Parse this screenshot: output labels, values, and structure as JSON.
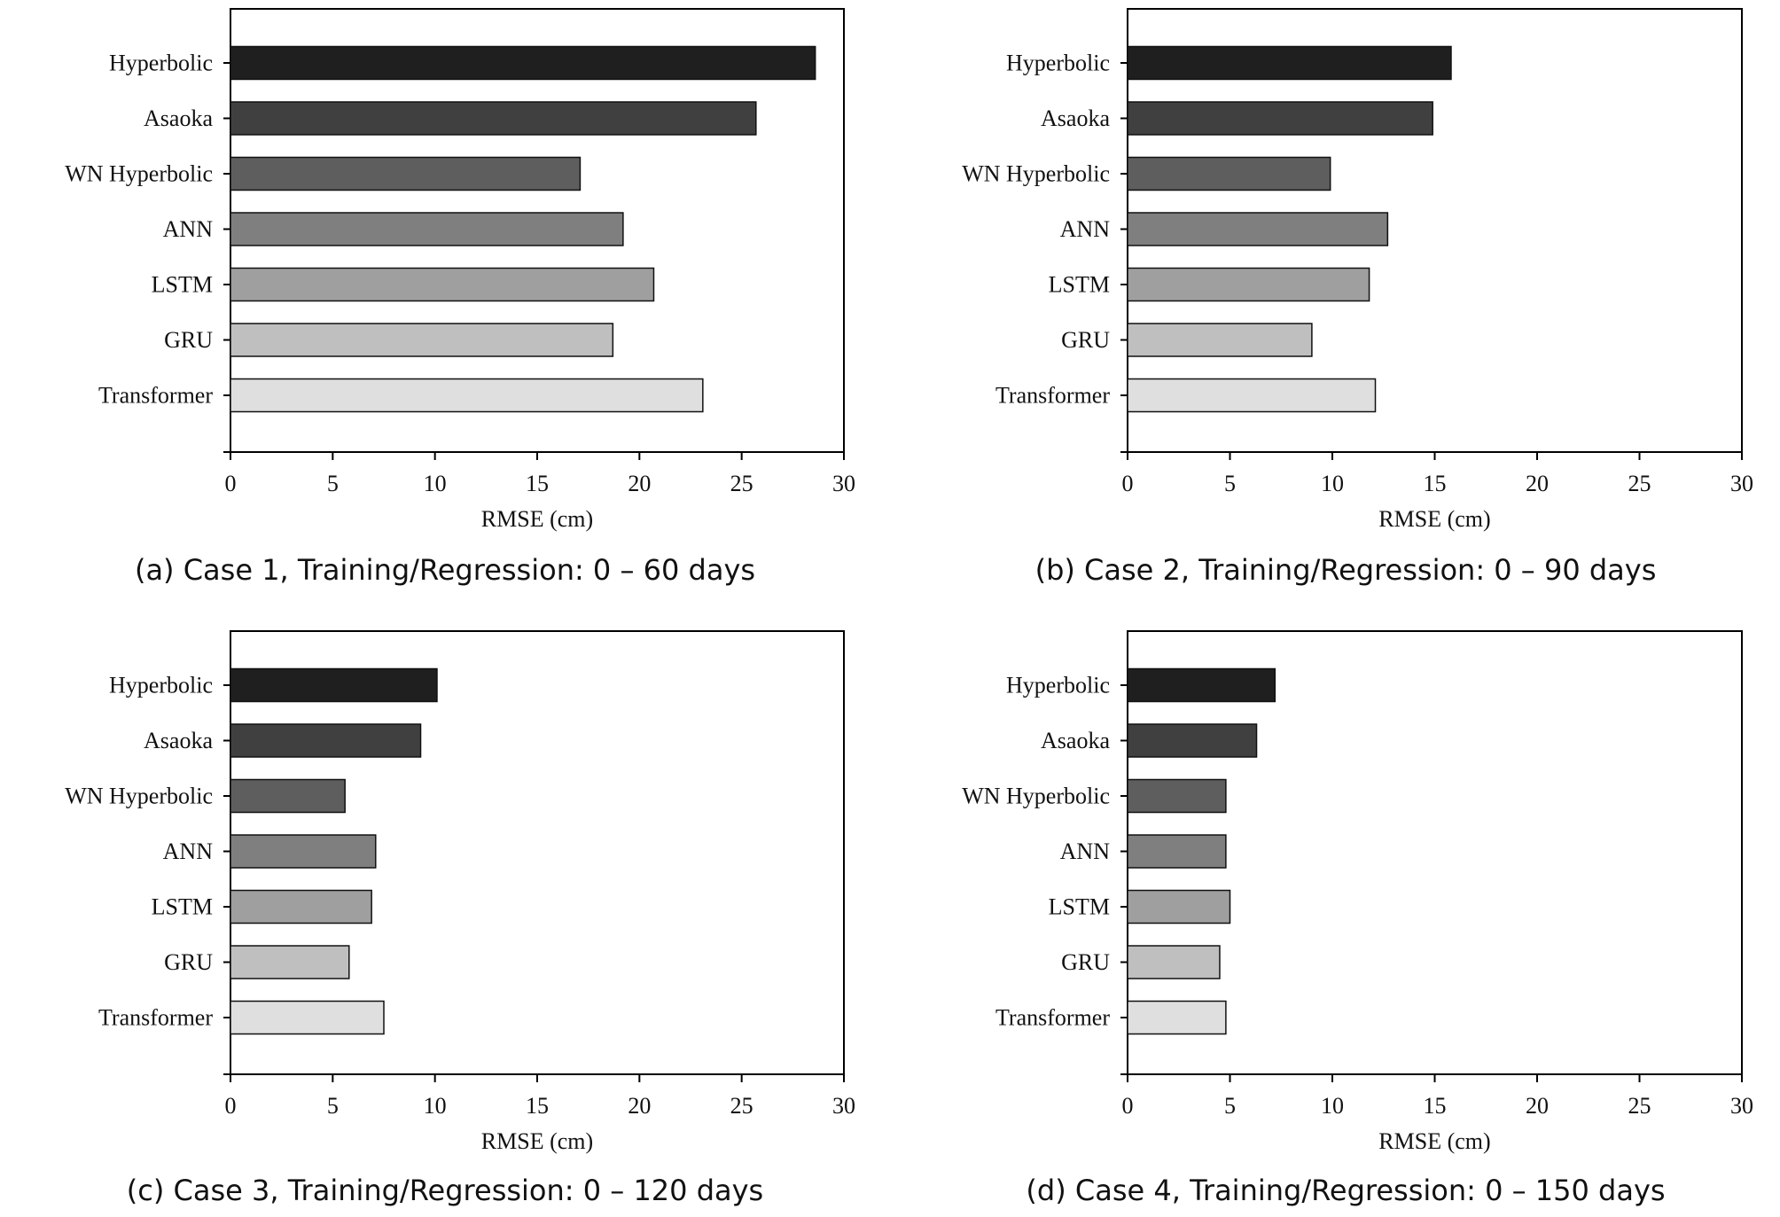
{
  "colors": {
    "background": "#ffffff",
    "axis": "#000000",
    "bar_outline": "#111111",
    "bar_fills": [
      "#1f1f1f",
      "#404040",
      "#5e5e5e",
      "#7f7f7f",
      "#9f9f9f",
      "#bfbfbf",
      "#dfdfdf"
    ]
  },
  "chart_data": [
    {
      "type": "bar",
      "orientation": "horizontal",
      "caption": "(a) Case 1, Training/Regression: 0 – 60 days",
      "xlabel": "RMSE (cm)",
      "xlim": [
        0,
        30
      ],
      "xticks": [
        "0",
        "5",
        "10",
        "15",
        "20",
        "25",
        "30"
      ],
      "categories": [
        "Hyperbolic",
        "Asaoka",
        "WN Hyperbolic",
        "ANN",
        "LSTM",
        "GRU",
        "Transformer"
      ],
      "values": [
        28.6,
        25.7,
        17.1,
        19.2,
        20.7,
        18.7,
        23.1
      ]
    },
    {
      "type": "bar",
      "orientation": "horizontal",
      "caption": "(b) Case 2, Training/Regression: 0 – 90 days",
      "xlabel": "RMSE (cm)",
      "xlim": [
        0,
        30
      ],
      "xticks": [
        "0",
        "5",
        "10",
        "15",
        "20",
        "25",
        "30"
      ],
      "categories": [
        "Hyperbolic",
        "Asaoka",
        "WN Hyperbolic",
        "ANN",
        "LSTM",
        "GRU",
        "Transformer"
      ],
      "values": [
        15.8,
        14.9,
        9.9,
        12.7,
        11.8,
        9.0,
        12.1
      ]
    },
    {
      "type": "bar",
      "orientation": "horizontal",
      "caption": "(c) Case 3, Training/Regression: 0 – 120 days",
      "xlabel": "RMSE (cm)",
      "xlim": [
        0,
        30
      ],
      "xticks": [
        "0",
        "5",
        "10",
        "15",
        "20",
        "25",
        "30"
      ],
      "categories": [
        "Hyperbolic",
        "Asaoka",
        "WN Hyperbolic",
        "ANN",
        "LSTM",
        "GRU",
        "Transformer"
      ],
      "values": [
        10.1,
        9.3,
        5.6,
        7.1,
        6.9,
        5.8,
        7.5
      ]
    },
    {
      "type": "bar",
      "orientation": "horizontal",
      "caption": "(d) Case 4, Training/Regression: 0 – 150 days",
      "xlabel": "RMSE (cm)",
      "xlim": [
        0,
        30
      ],
      "xticks": [
        "0",
        "5",
        "10",
        "15",
        "20",
        "25",
        "30"
      ],
      "categories": [
        "Hyperbolic",
        "Asaoka",
        "WN Hyperbolic",
        "ANN",
        "LSTM",
        "GRU",
        "Transformer"
      ],
      "values": [
        7.2,
        6.3,
        4.8,
        4.8,
        5.0,
        4.5,
        4.8
      ]
    }
  ]
}
